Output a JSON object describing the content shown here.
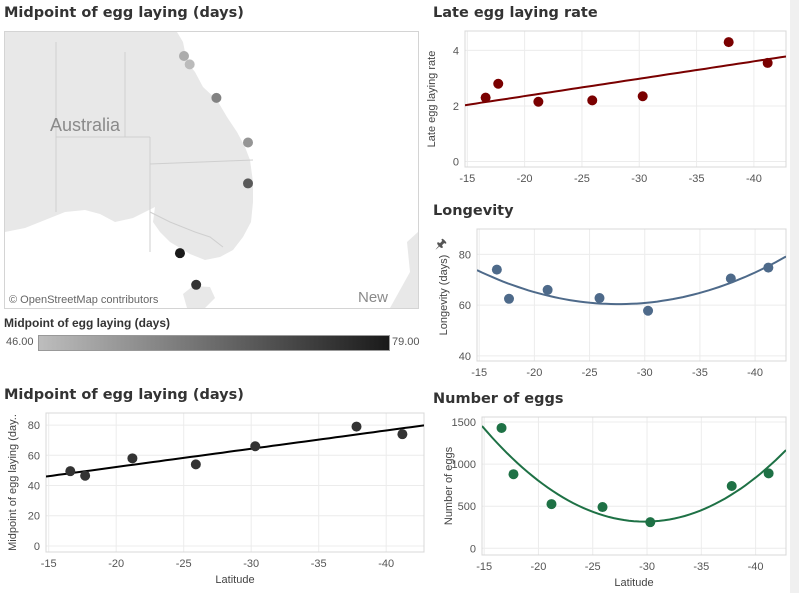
{
  "map_panel": {
    "title": "Midpoint of egg laying (days)",
    "country_label": "Australia",
    "neighbor_label": "New Zeala",
    "credit": "© OpenStreetMap contributors",
    "legend": {
      "title": "Midpoint of egg laying (days)",
      "min": "46.00",
      "max": "79.00",
      "color_low": "#bdbdbd",
      "color_high": "#1a1a1a"
    },
    "points": [
      {
        "lat": -16.6,
        "lon": 145.6,
        "value": 49.5
      },
      {
        "lat": -17.5,
        "lon": 146.3,
        "value": 46.5
      },
      {
        "lat": -21.1,
        "lon": 149.6,
        "value": 58
      },
      {
        "lat": -25.9,
        "lon": 153.5,
        "value": 54
      },
      {
        "lat": -30.3,
        "lon": 153.5,
        "value": 66
      },
      {
        "lat": -37.8,
        "lon": 145.1,
        "value": 79
      },
      {
        "lat": -41.2,
        "lon": 147.1,
        "value": 74
      }
    ]
  },
  "chart_data": [
    {
      "id": "late",
      "type": "scatter",
      "title": "Late egg laying rate",
      "xlabel": "",
      "ylabel": "Late egg laying rate",
      "x": [
        -16.6,
        -17.7,
        -21.2,
        -25.9,
        -30.3,
        -37.8,
        -41.2
      ],
      "y": [
        2.3,
        2.8,
        2.15,
        2.2,
        2.35,
        4.3,
        3.55
      ],
      "xlim": [
        -14.8,
        -42.8
      ],
      "ylim": [
        -0.2,
        4.7
      ],
      "xticks": [
        -15,
        -20,
        -25,
        -30,
        -35,
        -40
      ],
      "yticks": [
        0,
        2,
        4
      ],
      "trend": "linear",
      "color": "#7a0000",
      "grid": true
    },
    {
      "id": "longevity",
      "type": "scatter",
      "title": "Longevity",
      "xlabel": "",
      "ylabel": "Longevity (days)",
      "x": [
        -16.6,
        -17.7,
        -21.2,
        -25.9,
        -30.3,
        -37.8,
        -41.2
      ],
      "y": [
        74,
        62.5,
        66,
        62.8,
        57.8,
        70.5,
        74.8
      ],
      "xlim": [
        -14.8,
        -42.8
      ],
      "ylim": [
        38,
        90
      ],
      "xticks": [
        -15,
        -20,
        -25,
        -30,
        -35,
        -40
      ],
      "yticks": [
        40,
        60,
        80
      ],
      "trend": "quadratic",
      "color": "#4e6a8a",
      "grid": true
    },
    {
      "id": "midpoint",
      "type": "scatter",
      "title": "Midpoint of egg laying (days)",
      "xlabel": "Latitude",
      "ylabel": "Midpoint of egg laying (day..",
      "x": [
        -16.6,
        -17.7,
        -21.2,
        -25.9,
        -30.3,
        -37.8,
        -41.2
      ],
      "y": [
        49.5,
        46.5,
        58,
        54,
        66,
        79,
        74
      ],
      "xlim": [
        -14.8,
        -42.8
      ],
      "ylim": [
        -4,
        88
      ],
      "xticks": [
        -15,
        -20,
        -25,
        -30,
        -35,
        -40
      ],
      "yticks": [
        0,
        20,
        40,
        60,
        80
      ],
      "trend": "linear",
      "color": "#333333",
      "trend_color": "#000000",
      "grid": true
    },
    {
      "id": "eggs",
      "type": "scatter",
      "title": "Number of eggs",
      "xlabel": "Latitude",
      "ylabel": "Number of eggs",
      "x": [
        -16.6,
        -17.7,
        -21.2,
        -25.9,
        -30.3,
        -37.8,
        -41.2
      ],
      "y": [
        1430,
        880,
        525,
        490,
        310,
        740,
        890
      ],
      "xlim": [
        -14.8,
        -42.8
      ],
      "ylim": [
        -80,
        1560
      ],
      "xticks": [
        -15,
        -20,
        -25,
        -30,
        -35,
        -40
      ],
      "yticks": [
        0,
        500,
        1000,
        1500
      ],
      "trend": "quadratic",
      "color": "#1e7145",
      "grid": true
    }
  ]
}
